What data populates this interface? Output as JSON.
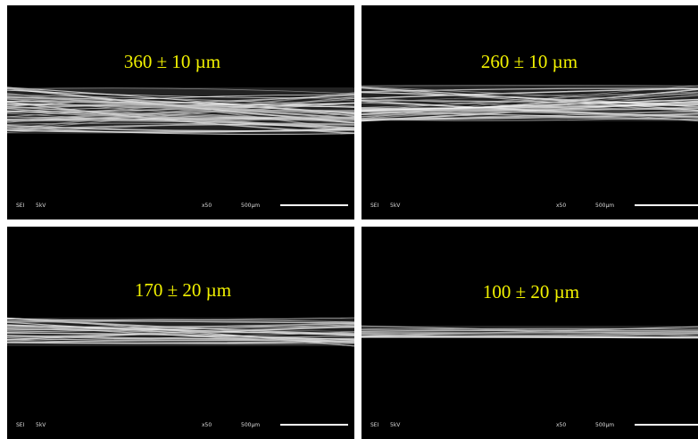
{
  "panels": [
    {
      "label": "360 ± 10 µm",
      "detector": "SEI",
      "voltage": "5kV",
      "magnification": "x50",
      "scale": "500µm"
    },
    {
      "label": "260 ± 10 µm",
      "detector": "SEI",
      "voltage": "5kV",
      "magnification": "x50",
      "scale": "500µm"
    },
    {
      "label": "170 ± 20 µm",
      "detector": "SEI",
      "voltage": "5kV",
      "magnification": "x50",
      "scale": "500µm"
    },
    {
      "label": "100 ± 20 µm",
      "detector": "SEI",
      "voltage": "5kV",
      "magnification": "x50",
      "scale": "500µm"
    }
  ]
}
